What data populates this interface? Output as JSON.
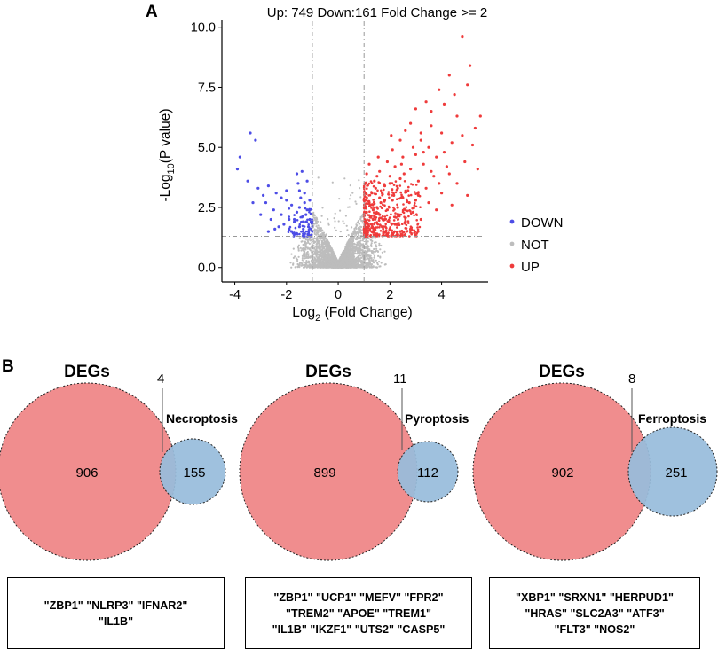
{
  "panel_a": {
    "letter": "A",
    "legend": {
      "position": "right",
      "entries": [
        {
          "label": "DOWN",
          "color": "#4d4de6"
        },
        {
          "label": "NOT",
          "color": "#bdbdbd"
        },
        {
          "label": "UP",
          "color": "#ef3b3b"
        }
      ]
    }
  },
  "panel_b": {
    "letter": "B",
    "venns": [
      {
        "left_title": "DEGs",
        "right_title": "Necroptosis",
        "left_only": "906",
        "overlap": "4",
        "right_only": "155",
        "genes": [
          "\"ZBP1\" \"NLRP3\" \"IFNAR2\"",
          "\"IL1B\""
        ]
      },
      {
        "left_title": "DEGs",
        "right_title": "Pyroptosis",
        "left_only": "899",
        "overlap": "11",
        "right_only": "112",
        "genes": [
          "\"ZBP1\" \"UCP1\" \"MEFV\" \"FPR2\"",
          "\"TREM2\" \"APOE\" \"TREM1\"",
          "\"IL1B\" \"IKZF1\" \"UTS2\" \"CASP5\""
        ]
      },
      {
        "left_title": "DEGs",
        "right_title": "Ferroptosis",
        "left_only": "902",
        "overlap": "8",
        "right_only": "251",
        "genes": [
          "\"XBP1\" \"SRXN1\" \"HERPUD1\"",
          "\"HRAS\" \"SLC2A3\" \"ATF3\"",
          "\"FLT3\" \"NOS2\""
        ]
      }
    ],
    "colors": {
      "degs": "#f08d8e",
      "pathway": "#98bcdc"
    }
  },
  "chart_data": {
    "type": "scatter",
    "title": "Up: 749 Down:161 Fold Change >= 2",
    "xlabel": "Log2 (Fold Change)",
    "ylabel": "-Log10(P value)",
    "xlabel_parts": [
      "Log",
      "2",
      " (Fold Change)"
    ],
    "ylabel_parts": [
      "-Log",
      "10",
      "(P value)"
    ],
    "xlim": [
      -4.5,
      5.8
    ],
    "ylim": [
      -0.6,
      10.1
    ],
    "xticks": [
      -4,
      -2,
      0,
      2,
      4
    ],
    "yticks": [
      0.0,
      2.5,
      5.0,
      7.5,
      10.0
    ],
    "ytick_labels": [
      "0.0",
      "2.5",
      "5.0",
      "7.5",
      "10.0"
    ],
    "grid": false,
    "thresholds": {
      "fold_change_log2": [
        -1,
        1
      ],
      "pvalue_neglog10": 1.3
    },
    "counts": {
      "UP": 749,
      "DOWN": 161
    },
    "series": [
      {
        "name": "DOWN",
        "color": "#4d4de6",
        "points": [
          [
            -3.8,
            4.6
          ],
          [
            -3.4,
            5.6
          ],
          [
            -3.2,
            5.3
          ],
          [
            -3.5,
            3.6
          ],
          [
            -3.9,
            4.1
          ],
          [
            -3.1,
            3.3
          ],
          [
            -2.9,
            3.0
          ],
          [
            -2.7,
            3.4
          ],
          [
            -2.5,
            2.4
          ],
          [
            -2.4,
            3.1
          ],
          [
            -2.2,
            2.2
          ],
          [
            -2.0,
            3.2
          ],
          [
            -1.9,
            2.0
          ],
          [
            -1.8,
            2.6
          ],
          [
            -1.7,
            1.9
          ],
          [
            -1.6,
            2.3
          ],
          [
            -1.55,
            3.5
          ],
          [
            -1.5,
            1.7
          ],
          [
            -1.45,
            2.9
          ],
          [
            -1.4,
            2.1
          ],
          [
            -1.35,
            1.6
          ],
          [
            -1.3,
            2.7
          ],
          [
            -1.25,
            1.9
          ],
          [
            -1.2,
            2.4
          ],
          [
            -1.15,
            1.5
          ],
          [
            -1.1,
            2.0
          ],
          [
            -1.05,
            1.6
          ],
          [
            -1.8,
            1.5
          ],
          [
            -2.1,
            1.8
          ],
          [
            -2.3,
            1.7
          ],
          [
            -2.6,
            2.0
          ],
          [
            -2.8,
            2.7
          ],
          [
            -3.0,
            2.2
          ],
          [
            -2.0,
            2.8
          ],
          [
            -1.6,
            3.9
          ],
          [
            -1.3,
            3.1
          ],
          [
            -1.1,
            2.8
          ],
          [
            -1.2,
            3.6
          ],
          [
            -1.4,
            4.0
          ],
          [
            -1.7,
            2.0
          ],
          [
            -1.9,
            1.6
          ],
          [
            -1.5,
            2.5
          ],
          [
            -1.25,
            2.2
          ],
          [
            -1.05,
            1.9
          ],
          [
            -2.2,
            2.9
          ],
          [
            -2.45,
            1.6
          ],
          [
            -2.7,
            1.5
          ],
          [
            -3.3,
            2.7
          ],
          [
            -1.65,
            1.4
          ],
          [
            -1.35,
            1.4
          ],
          [
            -1.15,
            1.7
          ],
          [
            -1.5,
            3.2
          ]
        ]
      },
      {
        "name": "UP",
        "color": "#ef3b3b",
        "points": [
          [
            4.8,
            9.6
          ],
          [
            5.1,
            8.4
          ],
          [
            4.3,
            8.0
          ],
          [
            5.0,
            7.6
          ],
          [
            3.9,
            7.4
          ],
          [
            4.1,
            6.8
          ],
          [
            3.6,
            6.5
          ],
          [
            3.4,
            6.9
          ],
          [
            4.6,
            6.3
          ],
          [
            5.5,
            6.3
          ],
          [
            3.0,
            6.6
          ],
          [
            2.8,
            6.0
          ],
          [
            2.6,
            5.7
          ],
          [
            3.2,
            5.6
          ],
          [
            4.0,
            5.6
          ],
          [
            2.4,
            5.3
          ],
          [
            3.5,
            5.0
          ],
          [
            4.4,
            5.2
          ],
          [
            5.2,
            5.1
          ],
          [
            2.1,
            4.9
          ],
          [
            2.5,
            4.6
          ],
          [
            3.0,
            4.7
          ],
          [
            3.8,
            4.6
          ],
          [
            1.9,
            4.4
          ],
          [
            2.2,
            4.2
          ],
          [
            2.8,
            4.1
          ],
          [
            3.3,
            4.3
          ],
          [
            4.2,
            4.2
          ],
          [
            5.4,
            4.1
          ],
          [
            1.6,
            4.0
          ],
          [
            2.0,
            3.8
          ],
          [
            2.4,
            3.7
          ],
          [
            3.1,
            3.6
          ],
          [
            3.7,
            3.8
          ],
          [
            4.6,
            3.5
          ],
          [
            1.4,
            3.6
          ],
          [
            1.8,
            3.4
          ],
          [
            2.3,
            3.3
          ],
          [
            2.7,
            3.2
          ],
          [
            3.4,
            3.3
          ],
          [
            4.0,
            3.1
          ],
          [
            1.3,
            3.1
          ],
          [
            1.6,
            2.9
          ],
          [
            2.1,
            2.8
          ],
          [
            2.5,
            2.9
          ],
          [
            3.0,
            2.8
          ],
          [
            3.5,
            2.7
          ],
          [
            1.2,
            2.7
          ],
          [
            1.5,
            2.5
          ],
          [
            1.9,
            2.4
          ],
          [
            2.3,
            2.5
          ],
          [
            2.9,
            2.3
          ],
          [
            1.1,
            2.3
          ],
          [
            1.4,
            2.1
          ],
          [
            1.8,
            2.0
          ],
          [
            2.2,
            2.1
          ],
          [
            2.6,
            1.9
          ],
          [
            1.05,
            1.9
          ],
          [
            1.3,
            1.8
          ],
          [
            1.7,
            1.7
          ],
          [
            2.0,
            1.6
          ],
          [
            2.4,
            1.5
          ],
          [
            1.1,
            1.5
          ],
          [
            1.5,
            1.4
          ],
          [
            1.9,
            1.4
          ],
          [
            2.8,
            1.6
          ],
          [
            3.2,
            2.0
          ],
          [
            3.8,
            2.4
          ],
          [
            4.4,
            2.6
          ],
          [
            5.0,
            3.0
          ],
          [
            1.25,
            2.6
          ],
          [
            1.45,
            3.3
          ],
          [
            1.7,
            3.1
          ],
          [
            2.0,
            3.5
          ],
          [
            1.15,
            1.7
          ],
          [
            1.35,
            2.0
          ],
          [
            1.6,
            2.2
          ],
          [
            1.8,
            2.8
          ],
          [
            2.15,
            3.0
          ],
          [
            2.55,
            3.9
          ],
          [
            3.6,
            4.0
          ],
          [
            4.9,
            4.4
          ],
          [
            2.9,
            5.0
          ],
          [
            3.3,
            4.8
          ],
          [
            1.2,
            4.3
          ],
          [
            1.55,
            4.6
          ],
          [
            2.05,
            5.5
          ],
          [
            3.6,
            5.9
          ],
          [
            4.5,
            7.2
          ],
          [
            2.2,
            1.8
          ],
          [
            2.6,
            2.4
          ],
          [
            3.1,
            3.0
          ],
          [
            1.0,
            1.6
          ],
          [
            1.4,
            1.6
          ],
          [
            1.75,
            1.5
          ],
          [
            1.35,
            2.4
          ],
          [
            1.65,
            2.7
          ],
          [
            1.95,
            1.9
          ],
          [
            2.35,
            2.2
          ],
          [
            2.75,
            2.7
          ],
          [
            3.9,
            3.5
          ],
          [
            4.3,
            3.9
          ],
          [
            4.8,
            5.5
          ],
          [
            5.3,
            5.8
          ],
          [
            1.1,
            3.9
          ],
          [
            1.0,
            2.8
          ],
          [
            1.5,
            3.8
          ],
          [
            2.45,
            4.3
          ],
          [
            3.2,
            5.3
          ],
          [
            4.1,
            4.8
          ]
        ]
      }
    ],
    "not_cloud": {
      "name": "NOT",
      "color": "#bdbdbd",
      "description": "dense grey V-shaped cloud of non-significant genes around 0"
    }
  }
}
